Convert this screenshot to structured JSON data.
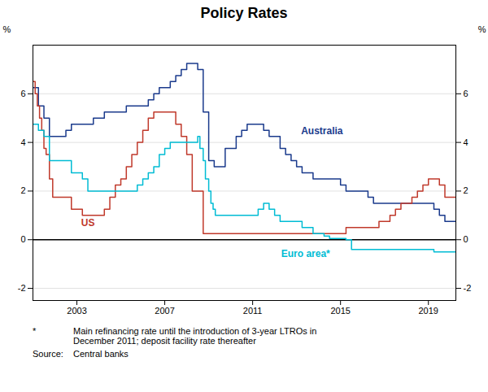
{
  "chart_data": {
    "type": "step",
    "title": "Policy Rates",
    "ylabel": "%",
    "y2label": "%",
    "xlim": [
      2001.0,
      2020.25
    ],
    "xticks": [
      2003,
      2007,
      2011,
      2015,
      2019
    ],
    "ylim": [
      -2.5,
      8.0
    ],
    "yticks": [
      -2,
      0,
      2,
      4,
      6
    ],
    "y2lim": [
      -2.5,
      8.0
    ],
    "y2ticks": [
      -2,
      0,
      2,
      4,
      6
    ],
    "grid": true,
    "series": [
      {
        "name": "Australia",
        "color": "#1a3a8c",
        "x": [
          2001.0,
          2001.25,
          2001.5,
          2001.75,
          2002.0,
          2002.5,
          2002.75,
          2003.0,
          2003.5,
          2003.75,
          2004.0,
          2004.25,
          2005.0,
          2005.25,
          2005.5,
          2005.75,
          2006.0,
          2006.25,
          2006.5,
          2006.75,
          2007.0,
          2007.25,
          2007.5,
          2007.75,
          2008.0,
          2008.25,
          2008.5,
          2008.75,
          2009.0,
          2009.25,
          2009.5,
          2009.75,
          2010.0,
          2010.25,
          2010.5,
          2010.75,
          2011.0,
          2011.25,
          2011.5,
          2011.75,
          2012.0,
          2012.25,
          2012.5,
          2012.75,
          2013.0,
          2013.25,
          2013.5,
          2013.75,
          2014.0,
          2014.25,
          2014.5,
          2014.75,
          2015.0,
          2015.25,
          2015.5,
          2015.75,
          2016.0,
          2016.25,
          2016.5,
          2016.75,
          2017.0,
          2017.25,
          2017.5,
          2017.75,
          2018.0,
          2018.25,
          2018.5,
          2018.75,
          2019.0,
          2019.25,
          2019.5,
          2019.75,
          2020.25
        ],
        "values": [
          6.25,
          5.5,
          5.0,
          4.25,
          4.25,
          4.5,
          4.75,
          4.75,
          4.75,
          5.0,
          5.0,
          5.25,
          5.25,
          5.5,
          5.5,
          5.5,
          5.5,
          5.75,
          6.0,
          6.25,
          6.25,
          6.5,
          6.75,
          7.0,
          7.25,
          7.25,
          7.0,
          5.25,
          3.25,
          3.0,
          3.0,
          3.75,
          3.75,
          4.25,
          4.5,
          4.75,
          4.75,
          4.75,
          4.5,
          4.25,
          4.25,
          3.75,
          3.5,
          3.25,
          3.0,
          2.75,
          2.75,
          2.5,
          2.5,
          2.5,
          2.5,
          2.5,
          2.25,
          2.0,
          2.0,
          2.0,
          2.0,
          1.75,
          1.5,
          1.5,
          1.5,
          1.5,
          1.5,
          1.5,
          1.5,
          1.5,
          1.5,
          1.5,
          1.5,
          1.25,
          1.0,
          0.75,
          0.75
        ]
      },
      {
        "name": "US",
        "color": "#c0392b",
        "x": [
          2001.0,
          2001.1,
          2001.2,
          2001.3,
          2001.4,
          2001.5,
          2001.6,
          2001.75,
          2001.9,
          2002.0,
          2002.25,
          2002.5,
          2002.75,
          2003.0,
          2003.25,
          2003.5,
          2003.75,
          2004.0,
          2004.25,
          2004.5,
          2004.75,
          2005.0,
          2005.25,
          2005.5,
          2005.75,
          2006.0,
          2006.25,
          2006.5,
          2006.75,
          2007.0,
          2007.25,
          2007.5,
          2007.75,
          2008.0,
          2008.25,
          2008.5,
          2008.75,
          2009.0,
          2009.25,
          2009.5,
          2009.75,
          2010.0,
          2010.25,
          2010.5,
          2010.75,
          2011.0,
          2011.25,
          2011.5,
          2011.75,
          2012.0,
          2012.25,
          2012.5,
          2012.75,
          2013.0,
          2013.25,
          2013.5,
          2013.75,
          2014.0,
          2014.25,
          2014.5,
          2014.75,
          2015.0,
          2015.25,
          2015.5,
          2015.75,
          2016.0,
          2016.25,
          2016.5,
          2016.75,
          2017.0,
          2017.25,
          2017.5,
          2017.75,
          2018.0,
          2018.25,
          2018.5,
          2018.75,
          2019.0,
          2019.25,
          2019.5,
          2019.75,
          2020.25
        ],
        "values": [
          6.5,
          6.0,
          5.5,
          5.0,
          4.5,
          3.75,
          3.5,
          2.5,
          1.75,
          1.75,
          1.75,
          1.75,
          1.25,
          1.25,
          1.0,
          1.0,
          1.0,
          1.0,
          1.25,
          1.75,
          2.25,
          2.5,
          3.0,
          3.5,
          4.0,
          4.5,
          5.0,
          5.25,
          5.25,
          5.25,
          5.25,
          4.75,
          4.25,
          3.5,
          2.0,
          2.0,
          0.25,
          0.25,
          0.25,
          0.25,
          0.25,
          0.25,
          0.25,
          0.25,
          0.25,
          0.25,
          0.25,
          0.25,
          0.25,
          0.25,
          0.25,
          0.25,
          0.25,
          0.25,
          0.25,
          0.25,
          0.25,
          0.25,
          0.25,
          0.25,
          0.25,
          0.25,
          0.5,
          0.5,
          0.5,
          0.5,
          0.5,
          0.5,
          0.75,
          0.75,
          1.0,
          1.25,
          1.5,
          1.5,
          1.75,
          2.0,
          2.25,
          2.5,
          2.5,
          2.25,
          1.75,
          1.75
        ]
      },
      {
        "name": "Euro area*",
        "color": "#00bcd4",
        "x": [
          2001.0,
          2001.25,
          2001.5,
          2001.75,
          2002.0,
          2002.25,
          2002.5,
          2002.75,
          2003.0,
          2003.25,
          2003.5,
          2003.75,
          2004.0,
          2004.25,
          2004.5,
          2004.75,
          2005.0,
          2005.25,
          2005.5,
          2005.75,
          2006.0,
          2006.25,
          2006.5,
          2006.75,
          2007.0,
          2007.25,
          2007.5,
          2007.75,
          2008.0,
          2008.25,
          2008.5,
          2008.6,
          2008.75,
          2008.85,
          2009.0,
          2009.1,
          2009.2,
          2009.3,
          2009.5,
          2009.75,
          2010.0,
          2010.25,
          2010.5,
          2010.75,
          2011.0,
          2011.25,
          2011.5,
          2011.75,
          2012.0,
          2012.25,
          2012.5,
          2012.75,
          2013.0,
          2013.25,
          2013.5,
          2013.75,
          2014.0,
          2014.25,
          2014.5,
          2014.75,
          2015.0,
          2015.25,
          2015.5,
          2015.75,
          2016.0,
          2016.25,
          2016.5,
          2016.75,
          2017.0,
          2017.25,
          2017.5,
          2017.75,
          2018.0,
          2018.25,
          2018.5,
          2018.75,
          2019.0,
          2019.25,
          2019.5,
          2019.75,
          2020.25
        ],
        "values": [
          4.75,
          4.5,
          4.25,
          3.25,
          3.25,
          3.25,
          3.25,
          2.75,
          2.75,
          2.5,
          2.0,
          2.0,
          2.0,
          2.0,
          2.0,
          2.0,
          2.0,
          2.0,
          2.0,
          2.25,
          2.5,
          2.75,
          3.0,
          3.5,
          3.75,
          4.0,
          4.0,
          4.0,
          4.0,
          4.0,
          4.25,
          3.75,
          3.25,
          2.5,
          2.0,
          1.5,
          1.25,
          1.0,
          1.0,
          1.0,
          1.0,
          1.0,
          1.0,
          1.0,
          1.0,
          1.25,
          1.5,
          1.25,
          1.0,
          0.75,
          0.75,
          0.75,
          0.75,
          0.5,
          0.5,
          0.25,
          0.25,
          0.15,
          0.05,
          0.05,
          0.05,
          0.0,
          -0.4,
          -0.4,
          -0.4,
          -0.4,
          -0.4,
          -0.4,
          -0.4,
          -0.4,
          -0.4,
          -0.4,
          -0.4,
          -0.4,
          -0.4,
          -0.4,
          -0.4,
          -0.5,
          -0.5,
          -0.5,
          -0.5
        ]
      }
    ],
    "annotations": [
      {
        "label": "*",
        "text": "Main refinancing rate until the introduction of 3-year LTROs in\nDecember 2011; deposit facility rate thereafter"
      },
      {
        "label": "Source:",
        "text": "Central banks"
      }
    ]
  }
}
